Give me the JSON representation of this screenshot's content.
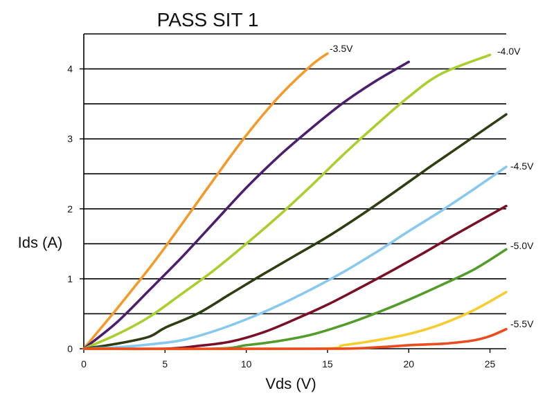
{
  "chart_data": {
    "type": "line",
    "title": "PASS SIT 1",
    "xlabel": "Vds (V)",
    "ylabel": "Ids (A)",
    "xlim": [
      0,
      26
    ],
    "ylim": [
      0,
      4.5
    ],
    "x_ticks": [
      0,
      5,
      10,
      15,
      20,
      25
    ],
    "y_ticks": [
      0,
      1,
      2,
      3,
      4
    ],
    "grid": "horizontal",
    "curve_labels": [
      "-3.5V",
      "-4.0V",
      "-4.5V",
      "-5.0V",
      "-5.5V"
    ],
    "series": [
      {
        "color": "#f39a2a",
        "points": [
          [
            0,
            0
          ],
          [
            1,
            0.28
          ],
          [
            2,
            0.56
          ],
          [
            3,
            0.85
          ],
          [
            4,
            1.14
          ],
          [
            5,
            1.45
          ],
          [
            6,
            1.77
          ],
          [
            8,
            2.42
          ],
          [
            10,
            3.05
          ],
          [
            12,
            3.6
          ],
          [
            14,
            4.05
          ],
          [
            15,
            4.22
          ]
        ]
      },
      {
        "color": "#4b1f6e",
        "points": [
          [
            0,
            0
          ],
          [
            2,
            0.37
          ],
          [
            4,
            0.83
          ],
          [
            6,
            1.3
          ],
          [
            8,
            1.8
          ],
          [
            10,
            2.3
          ],
          [
            12,
            2.75
          ],
          [
            14,
            3.15
          ],
          [
            16,
            3.52
          ],
          [
            18,
            3.83
          ],
          [
            20,
            4.1
          ]
        ]
      },
      {
        "color": "#a8cf2b",
        "points": [
          [
            0,
            0
          ],
          [
            2,
            0.2
          ],
          [
            4,
            0.45
          ],
          [
            6,
            0.78
          ],
          [
            8,
            1.12
          ],
          [
            10,
            1.5
          ],
          [
            12,
            1.9
          ],
          [
            14,
            2.33
          ],
          [
            16,
            2.78
          ],
          [
            18,
            3.2
          ],
          [
            20,
            3.6
          ],
          [
            22,
            3.93
          ],
          [
            25,
            4.2
          ]
        ]
      },
      {
        "color": "#2f3d12",
        "points": [
          [
            0,
            0
          ],
          [
            2,
            0.07
          ],
          [
            4,
            0.17
          ],
          [
            5,
            0.3
          ],
          [
            7,
            0.5
          ],
          [
            9,
            0.78
          ],
          [
            11,
            1.06
          ],
          [
            13,
            1.33
          ],
          [
            15,
            1.6
          ],
          [
            17,
            1.9
          ],
          [
            19,
            2.22
          ],
          [
            21,
            2.55
          ],
          [
            23,
            2.87
          ],
          [
            26,
            3.35
          ]
        ]
      },
      {
        "color": "#87c9ee",
        "points": [
          [
            0,
            0
          ],
          [
            2,
            0.02
          ],
          [
            4,
            0.06
          ],
          [
            6,
            0.12
          ],
          [
            8,
            0.25
          ],
          [
            10,
            0.42
          ],
          [
            12,
            0.62
          ],
          [
            14,
            0.85
          ],
          [
            16,
            1.1
          ],
          [
            18,
            1.38
          ],
          [
            20,
            1.68
          ],
          [
            22,
            1.97
          ],
          [
            24,
            2.28
          ],
          [
            26,
            2.6
          ]
        ]
      },
      {
        "color": "#7a1027",
        "points": [
          [
            0,
            0
          ],
          [
            5,
            0
          ],
          [
            7,
            0.04
          ],
          [
            9,
            0.1
          ],
          [
            11,
            0.23
          ],
          [
            13,
            0.42
          ],
          [
            15,
            0.63
          ],
          [
            17,
            0.87
          ],
          [
            19,
            1.12
          ],
          [
            21,
            1.38
          ],
          [
            23,
            1.65
          ],
          [
            26,
            2.04
          ]
        ]
      },
      {
        "color": "#529c2a",
        "points": [
          [
            0,
            0
          ],
          [
            8,
            0
          ],
          [
            10,
            0.05
          ],
          [
            12,
            0.11
          ],
          [
            14,
            0.2
          ],
          [
            16,
            0.34
          ],
          [
            18,
            0.51
          ],
          [
            20,
            0.7
          ],
          [
            22,
            0.91
          ],
          [
            24,
            1.13
          ],
          [
            26,
            1.42
          ]
        ]
      },
      {
        "color": "#f5cd2f",
        "points": [
          [
            0,
            0
          ],
          [
            14,
            0
          ],
          [
            16,
            0.05
          ],
          [
            18,
            0.12
          ],
          [
            20,
            0.21
          ],
          [
            22,
            0.35
          ],
          [
            24,
            0.55
          ],
          [
            26,
            0.81
          ]
        ]
      },
      {
        "color": "#ea4b1f",
        "points": [
          [
            0,
            0
          ],
          [
            15,
            0
          ],
          [
            18,
            0.02
          ],
          [
            20,
            0.05
          ],
          [
            22,
            0.07
          ],
          [
            23,
            0.09
          ],
          [
            24,
            0.12
          ],
          [
            25,
            0.18
          ],
          [
            26,
            0.28
          ]
        ]
      }
    ]
  }
}
